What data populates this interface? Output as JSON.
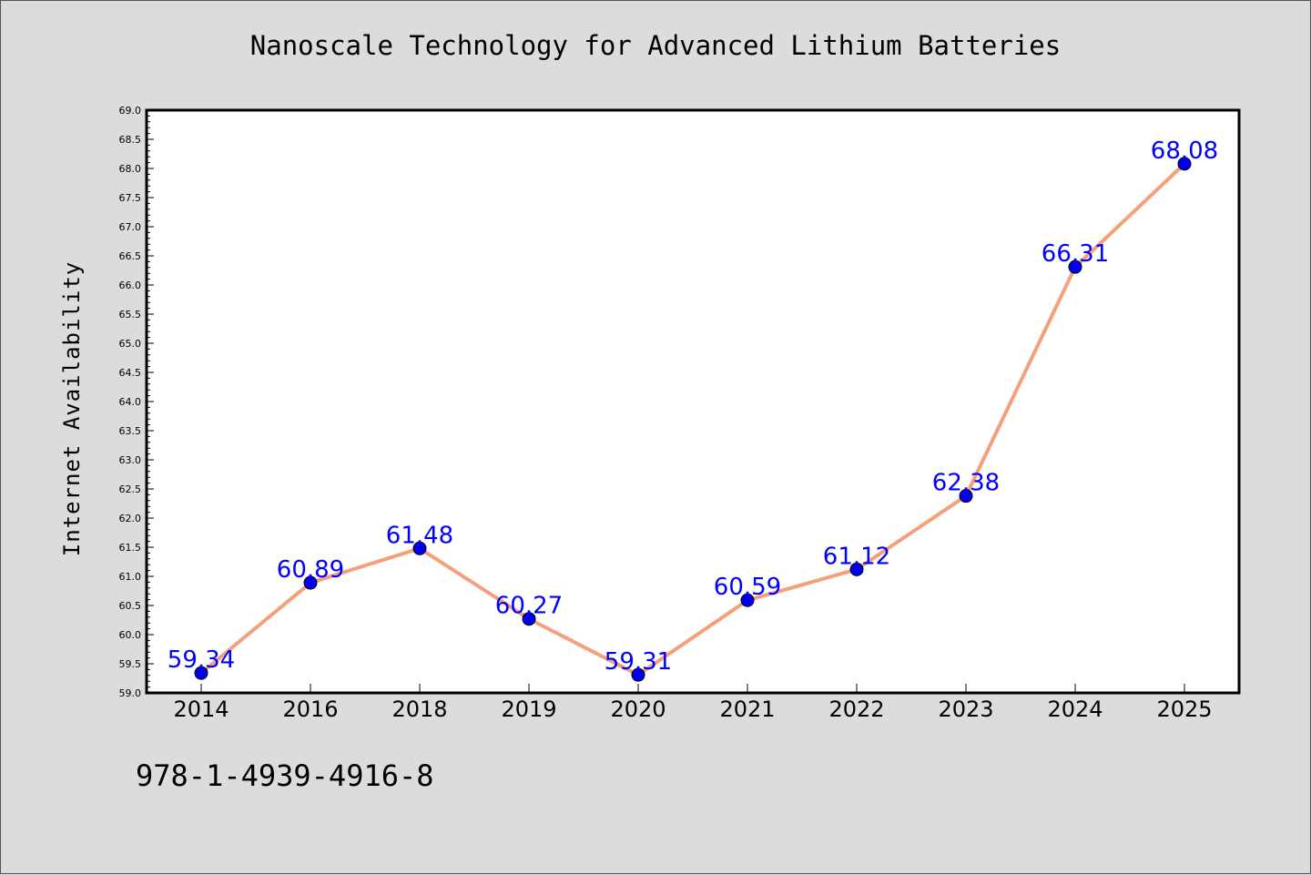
{
  "chart_data": {
    "type": "line",
    "title": "Nanoscale Technology for Advanced Lithium Batteries",
    "xlabel": "",
    "ylabel": "Internet Availability",
    "categories": [
      "2014",
      "2016",
      "2018",
      "2019",
      "2020",
      "2021",
      "2022",
      "2023",
      "2024",
      "2025"
    ],
    "values": [
      59.34,
      60.89,
      61.48,
      60.27,
      59.31,
      60.59,
      61.12,
      62.38,
      66.31,
      68.08
    ],
    "data_labels": [
      "59.34",
      "60.89",
      "61.48",
      "60.27",
      "59.31",
      "60.59",
      "61.12",
      "62.38",
      "66.31",
      "68.08"
    ],
    "ylim": [
      59.0,
      69.0
    ],
    "yticks": [
      "59.0",
      "59.5",
      "60.0",
      "60.5",
      "61.0",
      "61.5",
      "62.0",
      "62.5",
      "63.0",
      "63.5",
      "64.0",
      "64.5",
      "65.0",
      "65.5",
      "66.0",
      "66.5",
      "67.0",
      "67.5",
      "68.0",
      "68.5",
      "69.0"
    ],
    "grid": false,
    "line_color": "#f4a07a",
    "marker_color": "#0000ee",
    "label_color": "#0000ff",
    "plot_background": "#ffffff",
    "page_background": "#dcdcdc"
  },
  "footer": {
    "isbn": "978-1-4939-4916-8"
  }
}
